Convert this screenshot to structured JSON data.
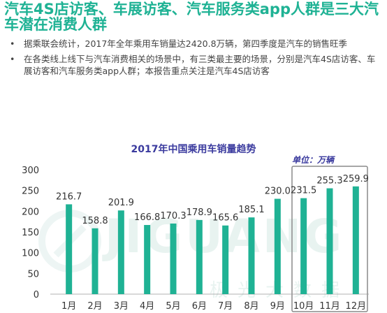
{
  "slide": {
    "title": "汽车4S店访客、车展访客、汽车服务类app人群是三大汽车潜在消费人群",
    "title_color": "#1fb294",
    "bullet_symbol": "•",
    "bullets": [
      "据乘联会统计，2017年全年乘用车销量达2420.8万辆，第四季度是汽车的销售旺季",
      "在各类线上线下与汽车消费相关的场景中，有三类最主要的场景，分别是汽车4S店访客、车展访客和汽车服务类app人群；本报告重点关注是汽车4S店访客"
    ]
  },
  "watermark": {
    "text": "JIGUANG",
    "subtext": "极光大数据"
  },
  "chart_data": {
    "type": "bar",
    "title": "2017年中国乘用车销量趋势",
    "unit_label": "单位：万辆",
    "categories": [
      "1月",
      "2月",
      "3月",
      "4月",
      "5月",
      "6月",
      "7月",
      "8月",
      "9月",
      "10月",
      "11月",
      "12月"
    ],
    "values": [
      216.7,
      158.8,
      201.9,
      166.8,
      170.3,
      178.9,
      165.6,
      185.1,
      230.0,
      231.5,
      255.3,
      259.9
    ],
    "value_labels": [
      "216.7",
      "158.8",
      "201.9",
      "166.8",
      "170.3",
      "178.9",
      "165.6",
      "185.1",
      "230.0",
      "231.5",
      "255.3",
      "259.9"
    ],
    "yticks": [
      "0",
      "50",
      "100",
      "150",
      "200",
      "250",
      "300"
    ],
    "ylim": [
      0,
      300
    ],
    "grid": false,
    "highlight_categories": [
      "10月",
      "11月",
      "12月"
    ],
    "colors": {
      "bar": "#1fb294",
      "title": "#3a3a9e",
      "unit": "#3a3a9e",
      "text": "#333333",
      "highlight_box": "#8a8a8a",
      "axis": "#999999"
    }
  }
}
